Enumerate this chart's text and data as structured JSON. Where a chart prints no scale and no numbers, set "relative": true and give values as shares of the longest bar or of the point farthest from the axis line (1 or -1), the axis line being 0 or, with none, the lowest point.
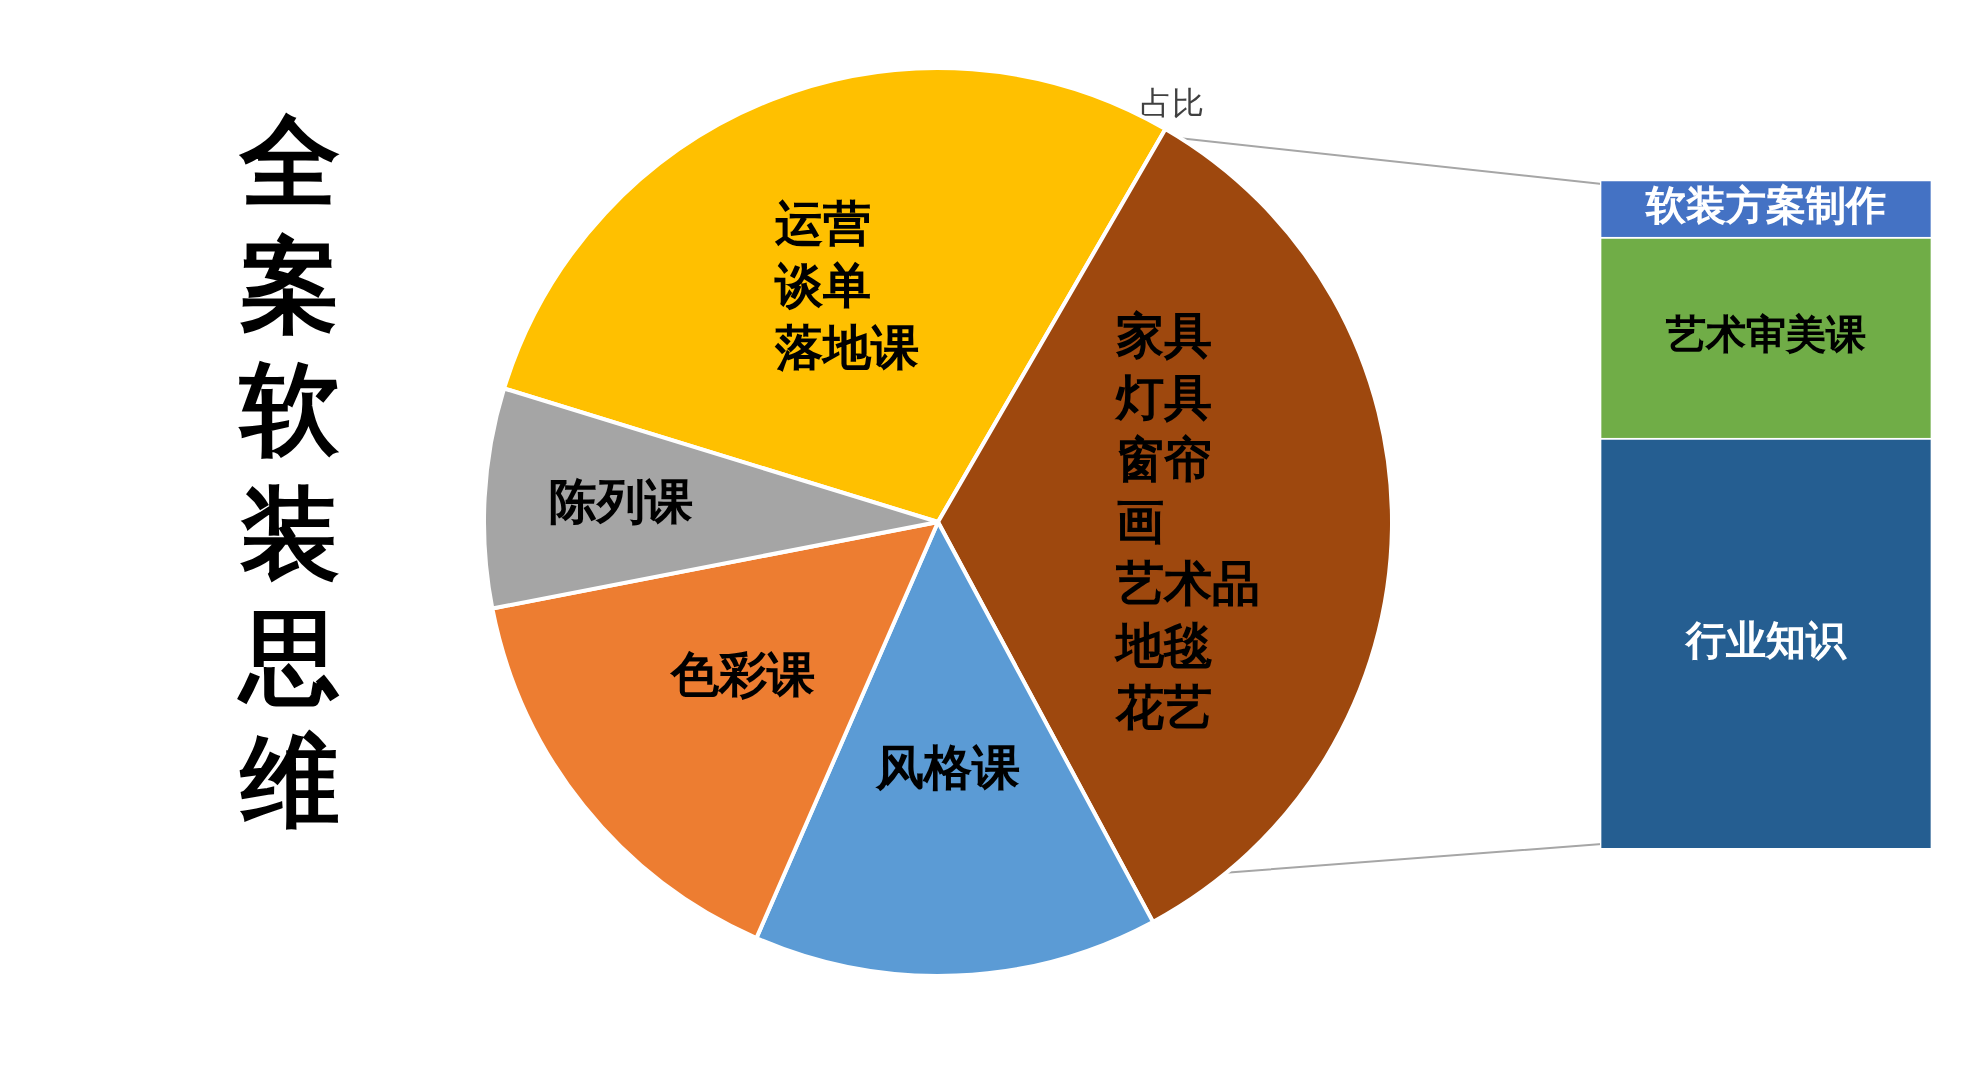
{
  "chart_data": [
    {
      "type": "pie",
      "title": "全案软装思维",
      "subtitle": "占比",
      "categories": [
        "运营谈单落地课",
        "家具灯具窗帘画艺术品地毯花艺",
        "风格课",
        "色彩课",
        "陈列课"
      ],
      "values": [
        28.6,
        33.8,
        14.4,
        15.4,
        7.8
      ],
      "colors": [
        "#ffc000",
        "#9e480e",
        "#5b9bd5",
        "#ed7d31",
        "#a5a5a5"
      ]
    },
    {
      "type": "bar",
      "stacked": true,
      "relative": true,
      "categories": [
        null
      ],
      "series": [
        {
          "name": "行业知识",
          "color": "#255e91",
          "values": [
            0.613
          ]
        },
        {
          "name": "艺术审美课",
          "color": "#70ad47",
          "values": [
            0.301
          ]
        },
        {
          "name": "软装方案制作",
          "color": "#4472c4",
          "values": [
            0.086
          ]
        }
      ]
    }
  ]
}
